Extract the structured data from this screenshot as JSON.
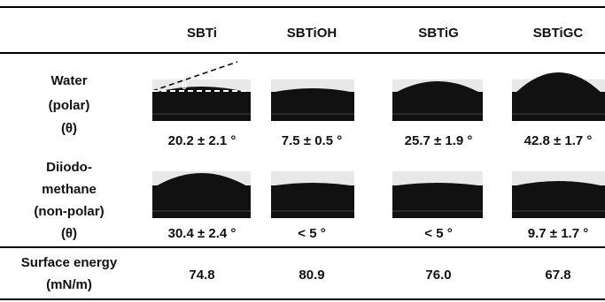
{
  "header": {
    "columns": [
      "SBTi",
      "SBTiOH",
      "SBTiG",
      "SBTiGC"
    ]
  },
  "rows": [
    {
      "label": [
        "Water",
        "(polar)",
        "(θ)"
      ],
      "values": [
        "20.2 ± 2.1 °",
        "7.5 ± 0.5 °",
        "25.7 ± 1.9 °",
        "42.8 ± 1.7 °"
      ]
    },
    {
      "label": [
        "Diiodo-",
        "methane",
        "(non-polar)",
        "(θ)"
      ],
      "values": [
        "30.4 ± 2.4 °",
        "< 5 °",
        "< 5 °",
        "9.7 ± 1.7 °"
      ]
    },
    {
      "label": [
        "Surface energy",
        "(mN/m)"
      ],
      "values": [
        "74.8",
        "80.9",
        "76.0",
        "67.8"
      ]
    }
  ],
  "annotation": "θ"
}
